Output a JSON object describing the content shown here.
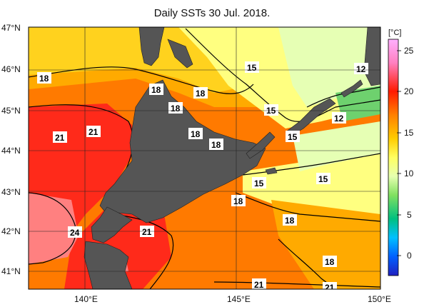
{
  "title": "Daily SSTs 30 Jul. 2018.",
  "lat_labels": [
    "47°N",
    "46°N",
    "45°N",
    "44°N",
    "43°N",
    "42°N",
    "41°N"
  ],
  "lon_labels": [
    "140°E",
    "145°E",
    "150°E"
  ],
  "colorbar": {
    "unit": "[°C]",
    "ticks": [
      "25",
      "20",
      "15",
      "10",
      "5",
      "0"
    ],
    "range": [
      -2,
      27
    ]
  },
  "isotherm_labels": [
    "18",
    "15",
    "12",
    "18",
    "18",
    "15",
    "18",
    "12",
    "21",
    "21",
    "18",
    "15",
    "18",
    "15",
    "15",
    "18",
    "18",
    "24",
    "21",
    "18",
    "21",
    "21"
  ],
  "colors": {
    "land": "#555555",
    "warm_24": "#ff8080",
    "sst_21": "#ff2a1a",
    "sst_19": "#ff7a00",
    "sst_18": "#ffaa00",
    "sst_16": "#ffd21e",
    "sst_15": "#ffff80",
    "sst_13": "#e6ffb4",
    "sst_12": "#6ed16e"
  }
}
